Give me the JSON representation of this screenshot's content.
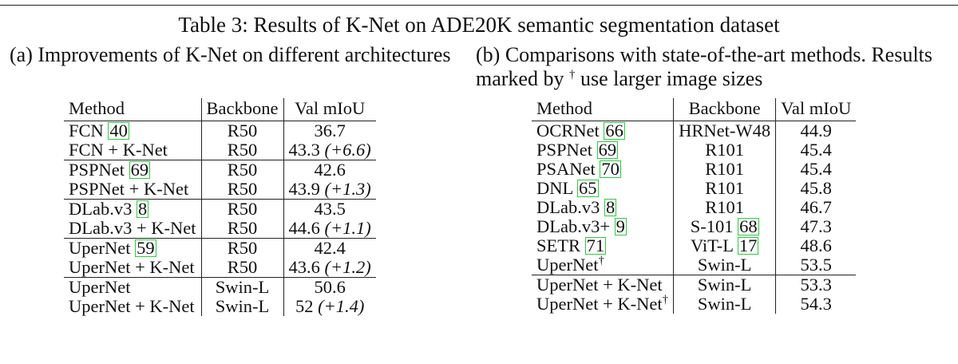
{
  "caption": "Table 3: Results of K-Net on ADE20K semantic segmentation dataset",
  "subcaption_a": "(a) Improvements of K-Net on different architectures",
  "subcaption_b_pre": "(b) Comparisons with state-of-the-art methods. Results marked by ",
  "subcaption_b_mark": "†",
  "subcaption_b_post": " use larger image sizes",
  "table_a": {
    "headers": [
      "Method",
      "Backbone",
      "Val mIoU"
    ],
    "rows": [
      {
        "method": "FCN ",
        "ref": "40",
        "backbone": "R50",
        "miou": "36.7",
        "delta": ""
      },
      {
        "method": "FCN + K-Net",
        "ref": "",
        "backbone": "R50",
        "miou": "43.3 ",
        "delta": "(+6.6)"
      },
      {
        "method": "PSPNet ",
        "ref": "69",
        "backbone": "R50",
        "miou": "42.6",
        "delta": ""
      },
      {
        "method": "PSPNet + K-Net",
        "ref": "",
        "backbone": "R50",
        "miou": "43.9 ",
        "delta": "(+1.3)"
      },
      {
        "method": "DLab.v3 ",
        "ref": "8",
        "backbone": "R50",
        "miou": "43.5",
        "delta": ""
      },
      {
        "method": "DLab.v3 + K-Net",
        "ref": "",
        "backbone": "R50",
        "miou": "44.6 ",
        "delta": "(+1.1)"
      },
      {
        "method": "UperNet ",
        "ref": "59",
        "backbone": "R50",
        "miou": "42.4",
        "delta": ""
      },
      {
        "method": "UperNet + K-Net",
        "ref": "",
        "backbone": "R50",
        "miou": "43.6 ",
        "delta": "(+1.2)"
      },
      {
        "method": "UperNet",
        "ref": "",
        "backbone": "Swin-L",
        "miou": "50.6",
        "delta": ""
      },
      {
        "method": "UperNet + K-Net",
        "ref": "",
        "backbone": "Swin-L",
        "miou": "52 ",
        "delta": "(+1.4)"
      }
    ]
  },
  "table_b": {
    "headers": [
      "Method",
      "Backbone",
      "Val mIoU"
    ],
    "rows": [
      {
        "method": "OCRNet ",
        "ref": "66",
        "dagger": "",
        "bb": "HRNet-W48",
        "bb_ref": "",
        "miou": "44.9"
      },
      {
        "method": "PSPNet ",
        "ref": "69",
        "dagger": "",
        "bb": "R101",
        "bb_ref": "",
        "miou": "45.4"
      },
      {
        "method": "PSANet ",
        "ref": "70",
        "dagger": "",
        "bb": "R101",
        "bb_ref": "",
        "miou": "45.4"
      },
      {
        "method": "DNL ",
        "ref": "65",
        "dagger": "",
        "bb": "R101",
        "bb_ref": "",
        "miou": "45.8"
      },
      {
        "method": "DLab.v3 ",
        "ref": "8",
        "dagger": "",
        "bb": "R101",
        "bb_ref": "",
        "miou": "46.7"
      },
      {
        "method": "DLab.v3+ ",
        "ref": "9",
        "dagger": "",
        "bb": "S-101 ",
        "bb_ref": "68",
        "miou": "47.3"
      },
      {
        "method": "SETR ",
        "ref": "71",
        "dagger": "",
        "bb": "ViT-L ",
        "bb_ref": "17",
        "miou": "48.6"
      },
      {
        "method": "UperNet",
        "ref": "",
        "dagger": "†",
        "bb": "Swin-L",
        "bb_ref": "",
        "miou": "53.5"
      },
      {
        "method": "UperNet + K-Net",
        "ref": "",
        "dagger": "",
        "bb": "Swin-L",
        "bb_ref": "",
        "miou": "53.3"
      },
      {
        "method": "UperNet + K-Net",
        "ref": "",
        "dagger": "†",
        "bb": "Swin-L",
        "bb_ref": "",
        "miou": "54.3",
        "bold": true
      }
    ]
  }
}
